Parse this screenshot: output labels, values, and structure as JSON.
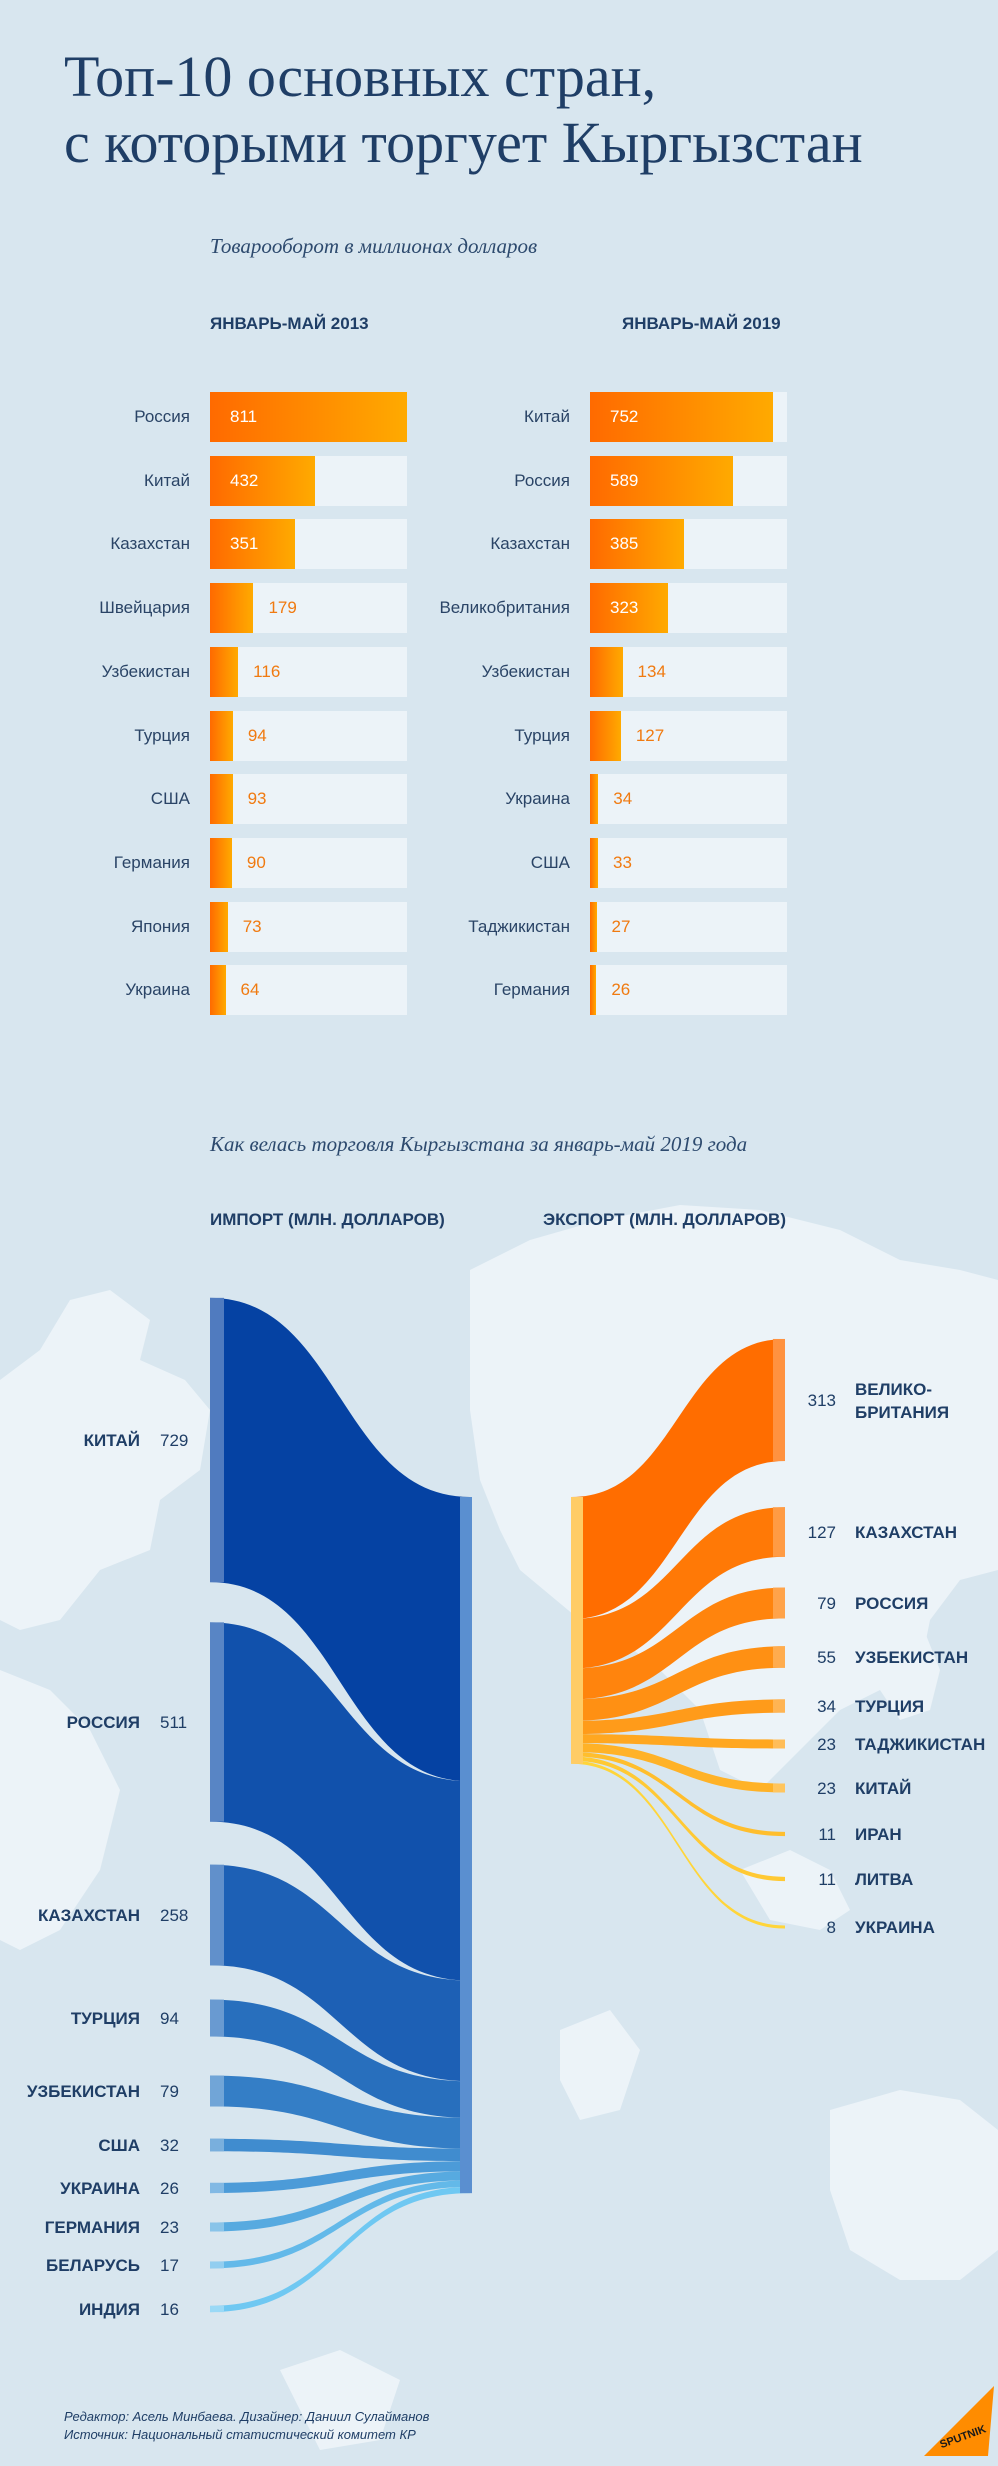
{
  "title_line1": "Топ-10 основных стран,",
  "title_line2": "с которыми торгует Кыргызстан",
  "turnover_subtitle": "Товарооборот в миллионах долларов",
  "sankey_subtitle": "Как велась торговля Кыргызстана за январь-май 2019 года",
  "footer": {
    "editor": "Редактор: Асель Минбаева. Дизайнер: Даниил Сулайманов",
    "source": "Источник: Национальный статистический комитет КР"
  },
  "logo_text": "SPUTNIK",
  "colors": {
    "bar_start": "#ff6a00",
    "bar_end": "#ffaa00",
    "track": "#ecf3f8",
    "import_dark": "#0542a3",
    "import_light": "#6fc8f2",
    "export_dark": "#ff6d00",
    "export_light": "#ffd53a",
    "text": "#1f3e66"
  },
  "chart_data": [
    {
      "type": "bar",
      "title": "ЯНВАРЬ-МАЙ 2013",
      "categories": [
        "Россия",
        "Китай",
        "Казахстан",
        "Швейцария",
        "Узбекистан",
        "Турция",
        "США",
        "Германия",
        "Япония",
        "Украина"
      ],
      "values": [
        811,
        432,
        351,
        179,
        116,
        94,
        93,
        90,
        73,
        64
      ],
      "xlim": [
        0,
        811
      ]
    },
    {
      "type": "bar",
      "title": "ЯНВАРЬ-МАЙ 2019",
      "categories": [
        "Китай",
        "Россия",
        "Казахстан",
        "Великобритания",
        "Узбекистан",
        "Турция",
        "Украина",
        "США",
        "Таджикистан",
        "Германия"
      ],
      "values": [
        752,
        589,
        385,
        323,
        134,
        127,
        34,
        33,
        27,
        26
      ],
      "xlim": [
        0,
        811
      ]
    },
    {
      "type": "sankey",
      "title": "ИМПОРТ (МЛН. ДОЛЛАРОВ)",
      "categories": [
        "КИТАЙ",
        "РОССИЯ",
        "КАЗАХСТАН",
        "ТУРЦИЯ",
        "УЗБЕКИСТАН",
        "США",
        "УКРАИНА",
        "ГЕРМАНИЯ",
        "БЕЛАРУСЬ",
        "ИНДИЯ"
      ],
      "values": [
        729,
        511,
        258,
        94,
        79,
        32,
        26,
        23,
        17,
        16
      ]
    },
    {
      "type": "sankey",
      "title": "ЭКСПОРТ (МЛН. ДОЛЛАРОВ)",
      "categories": [
        "ВЕЛИКО-\nБРИТАНИЯ",
        "КАЗАХСТАН",
        "РОССИЯ",
        "УЗБЕКИСТАН",
        "ТУРЦИЯ",
        "ТАДЖИКИСТАН",
        "КИТАЙ",
        "ИРАН",
        "ЛИТВА",
        "УКРАИНА"
      ],
      "values": [
        313,
        127,
        79,
        55,
        34,
        23,
        23,
        11,
        11,
        8
      ]
    }
  ]
}
